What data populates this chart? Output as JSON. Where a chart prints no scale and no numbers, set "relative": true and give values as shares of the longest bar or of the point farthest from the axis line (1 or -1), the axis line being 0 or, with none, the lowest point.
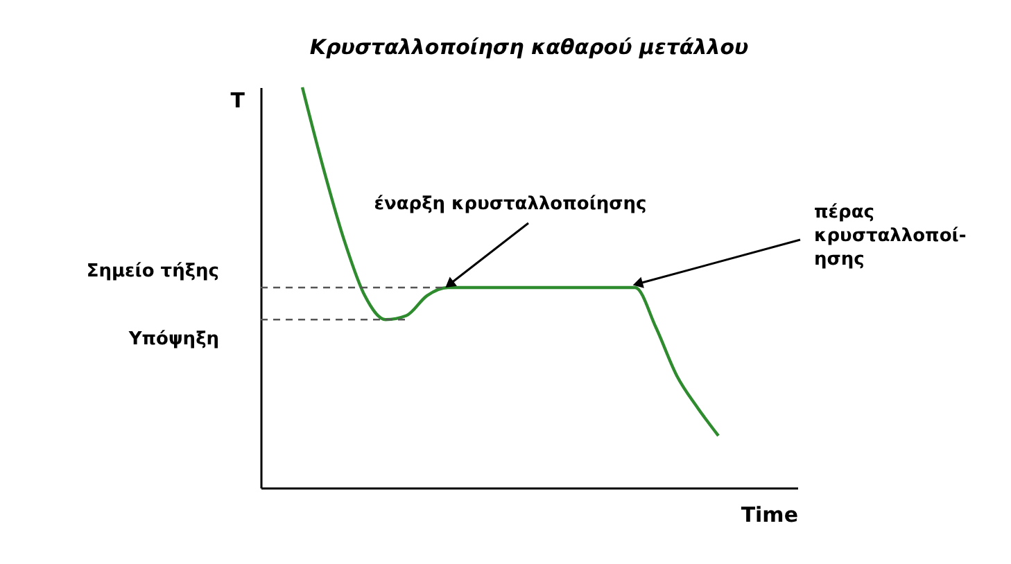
{
  "chart_data": {
    "type": "line",
    "title": "Κρυσταλλοποίηση καθαρού μετάλλου",
    "xlabel": "Time",
    "ylabel": "T",
    "relative": true,
    "categories": [
      null,
      null,
      null,
      null,
      null,
      null,
      null,
      null,
      null,
      null,
      null,
      null,
      null,
      null,
      null,
      null,
      null,
      null,
      null,
      null,
      null,
      null,
      null,
      null,
      null,
      null
    ],
    "series": [
      {
        "color": "#2e8b2e",
        "values": [
          null,
          null,
          1.0,
          0.8,
          0.62,
          0.48,
          0.42,
          0.43,
          0.48,
          0.5,
          0.5,
          0.5,
          0.5,
          0.5,
          0.5,
          0.5,
          0.5,
          0.5,
          0.5,
          0.4,
          0.28,
          0.2,
          0.13,
          null,
          null,
          null
        ]
      }
    ],
    "ref_lines": [
      {
        "axis": "y",
        "value": 0.5,
        "label": "Σημείο τήξης",
        "line_style": "dashed",
        "color": "#555555"
      },
      {
        "axis": "y",
        "value": 0.42,
        "label": "Υπόψηξη",
        "line_style": "dashed",
        "color": "#555555"
      }
    ],
    "annotations": [
      "έναρξη κρυσταλλοποίησης",
      "πέρας\nκρυσταλλοποί-\nησης"
    ],
    "marker": "none",
    "line_style": "solid",
    "grid": false
  }
}
